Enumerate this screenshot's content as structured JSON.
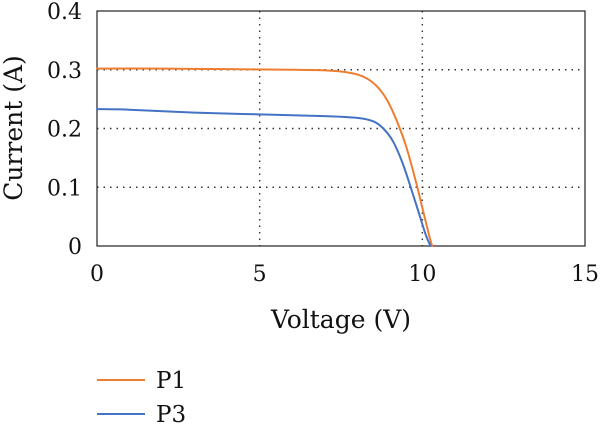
{
  "chart_data": {
    "type": "line",
    "xlabel": "Voltage (V)",
    "ylabel": "Current (A)",
    "xlim": [
      0,
      15
    ],
    "ylim": [
      0,
      0.4
    ],
    "xticks": [
      0,
      5,
      10,
      15
    ],
    "yticks": [
      0,
      0.1,
      0.2,
      0.3,
      0.4
    ],
    "xtick_labels": [
      "0",
      "5",
      "10",
      "15"
    ],
    "ytick_labels": [
      "0",
      "0.1",
      "0.2",
      "0.3",
      "0.4"
    ],
    "grid": "dotted",
    "legend_position": "bottom-left",
    "series": [
      {
        "name": "P1",
        "color": "#ED7D31",
        "x": [
          0,
          2,
          4,
          6,
          7,
          7.5,
          8,
          8.3,
          8.6,
          8.9,
          9.2,
          9.5,
          9.8,
          10.0,
          10.2,
          10.3
        ],
        "y": [
          0.302,
          0.302,
          0.301,
          0.3,
          0.299,
          0.297,
          0.292,
          0.285,
          0.272,
          0.25,
          0.215,
          0.17,
          0.11,
          0.065,
          0.02,
          0.0
        ]
      },
      {
        "name": "P3",
        "color": "#4472C4",
        "x": [
          0,
          1,
          3,
          5,
          7,
          8,
          8.5,
          8.8,
          9.1,
          9.4,
          9.7,
          9.9,
          10.1,
          10.25
        ],
        "y": [
          0.233,
          0.232,
          0.227,
          0.224,
          0.221,
          0.218,
          0.212,
          0.2,
          0.178,
          0.14,
          0.09,
          0.055,
          0.02,
          0.0
        ]
      }
    ]
  }
}
